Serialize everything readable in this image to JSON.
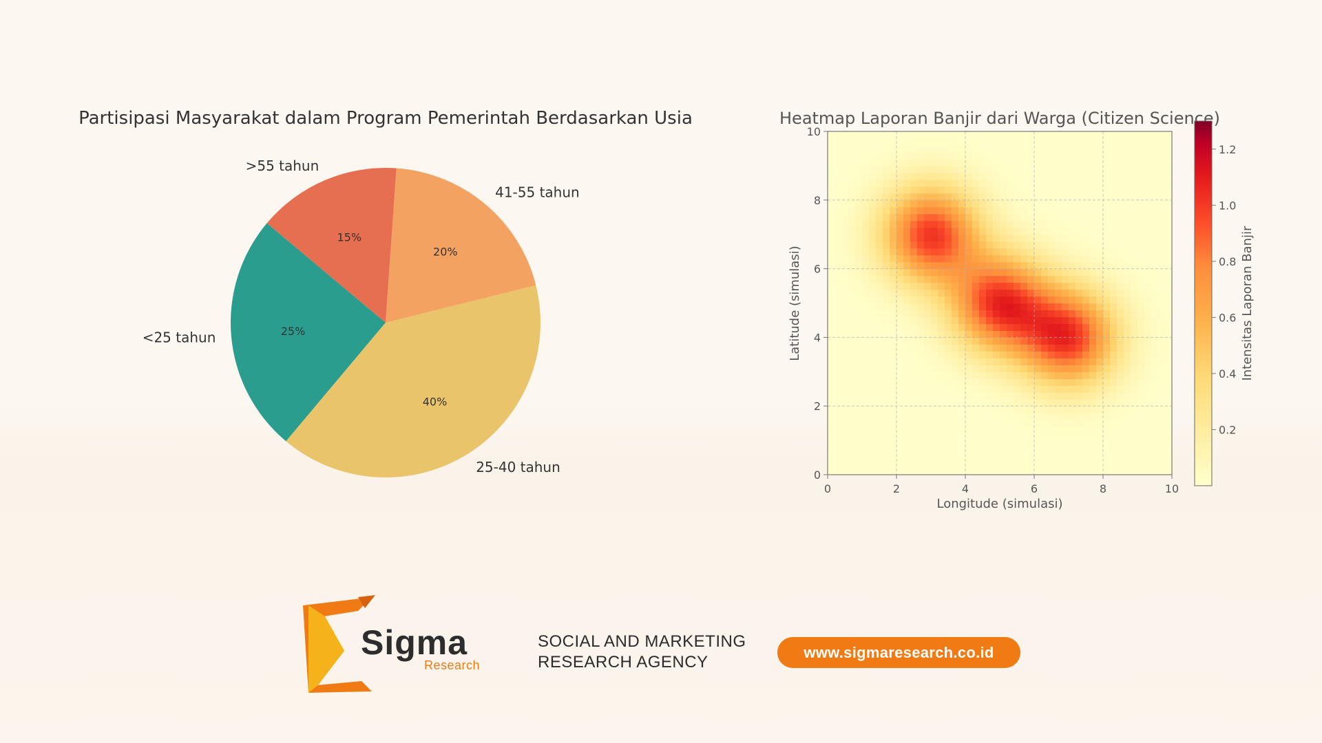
{
  "chart_data": [
    {
      "type": "pie",
      "title": "Partisipasi Masyarakat dalam Program Pemerintah Berdasarkan Usia",
      "categories": [
        "<25 tahun",
        "25-40 tahun",
        "41-55 tahun",
        ">55 tahun"
      ],
      "values": [
        25,
        40,
        20,
        15
      ],
      "value_labels": [
        "25%",
        "40%",
        "20%",
        "15%"
      ],
      "colors": [
        "#2a9d8f",
        "#e9c46a",
        "#f4a261",
        "#e76f51"
      ],
      "start_angle_deg": 140,
      "direction": "counterclockwise"
    },
    {
      "type": "heatmap",
      "title": "Heatmap Laporan Banjir dari Warga (Citizen Science)",
      "xlabel": "Longitude (simulasi)",
      "ylabel": "Latitude (simulasi)",
      "xlim": [
        0,
        10
      ],
      "ylim": [
        0,
        10
      ],
      "xticks": [
        "0",
        "2",
        "4",
        "6",
        "8",
        "10"
      ],
      "yticks": [
        "0",
        "2",
        "4",
        "6",
        "8",
        "10"
      ],
      "grid": true,
      "colormap": "YlOrRd",
      "colorbar": {
        "label": "Intensitas Laporan Banjir",
        "range": [
          0,
          1.3
        ],
        "ticks": [
          "0.2",
          "0.4",
          "0.6",
          "0.8",
          "1.0",
          "1.2"
        ]
      },
      "hotspots": [
        {
          "x": 3,
          "y": 7,
          "intensity": 1.0
        },
        {
          "x": 5,
          "y": 5,
          "intensity": 1.0
        },
        {
          "x": 7,
          "y": 4,
          "intensity": 1.0
        }
      ],
      "peak_value": 1.3,
      "peak_location": [
        5.1,
        5.0
      ]
    }
  ],
  "footer": {
    "logo_name": "Sigma",
    "logo_sub": "Research",
    "tagline_line1": "SOCIAL AND MARKETING",
    "tagline_line2": "RESEARCH AGENCY",
    "url": "www.sigmaresearch.co.id"
  }
}
